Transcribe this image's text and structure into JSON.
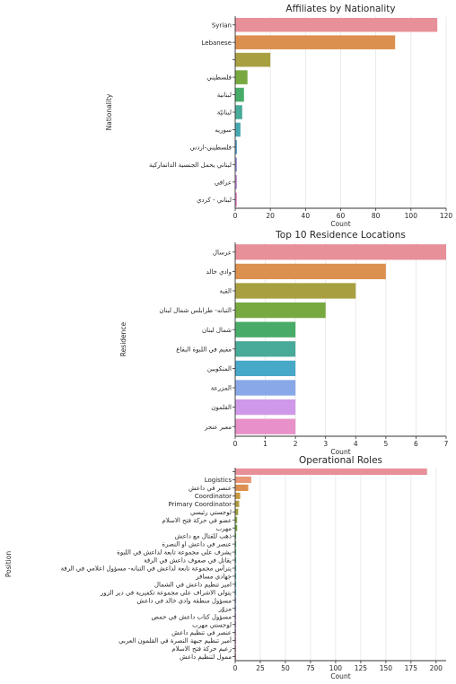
{
  "chart_data": [
    {
      "type": "bar",
      "orientation": "horizontal",
      "title": "Affiliates by Nationality",
      "xlabel": "Count",
      "ylabel": "Nationality",
      "xlim": [
        0,
        120
      ],
      "xticks": [
        0,
        20,
        40,
        60,
        80,
        100,
        120
      ],
      "grid": "vertical",
      "categories": [
        "Syrian",
        "Lebanese",
        "",
        "فلسطيني",
        "لبنانية",
        "لبنانيّة",
        "سوريه",
        "فلسطيني-اردني",
        "لبناني يحمل الجنسية الدانماركية",
        "عراقي",
        "لبناني - كردي"
      ],
      "values": [
        115,
        91,
        20,
        7,
        5,
        4,
        3,
        1,
        1,
        1,
        1
      ],
      "colors": [
        "#e8909a",
        "#dc9050",
        "#a8a040",
        "#78a840",
        "#48ac68",
        "#48aa98",
        "#48a8b0",
        "#58a0c8",
        "#a098dc",
        "#c890dc",
        "#e890c8"
      ]
    },
    {
      "type": "bar",
      "orientation": "horizontal",
      "title": "Top 10 Residence Locations",
      "xlabel": "Count",
      "ylabel": "Residence",
      "xlim": [
        0,
        7
      ],
      "xticks": [
        0,
        1,
        2,
        3,
        4,
        5,
        6,
        7
      ],
      "grid": "vertical",
      "categories": [
        "عرسال",
        "وادي خالد",
        "القبة",
        "التبانه- طرابلس شمال لبنان",
        "شمال لبنان",
        "مقيم في اللبوة البقاع",
        "المنكوبين",
        "المزرعة",
        "القلمون",
        "معبر عنجر"
      ],
      "values": [
        7,
        5,
        4,
        3,
        2,
        2,
        2,
        2,
        2,
        2
      ],
      "colors": [
        "#e8909a",
        "#dc9050",
        "#a8a040",
        "#78a840",
        "#48ac68",
        "#48aa98",
        "#48a8c8",
        "#88a8e8",
        "#d098e8",
        "#e890c8"
      ]
    },
    {
      "type": "bar",
      "orientation": "horizontal",
      "title": "Operational Roles",
      "xlabel": "Count",
      "ylabel": "Position",
      "xlim": [
        0,
        210
      ],
      "xticks": [
        0,
        25,
        50,
        75,
        100,
        125,
        150,
        175,
        200
      ],
      "grid": "vertical",
      "categories": [
        "",
        "Logistics",
        "عنصر في داعش",
        "Coordinator",
        "Primary Coordinator",
        "لوجستي رئيسي",
        "عضو في حركة فتح الاسلام",
        "مهرب",
        "ذهب للقتال مع داعش",
        "عنصر في داعش او النصرة",
        "يشرف على مجموعة تابعة لداعش في اللبوة",
        "يقاتل في صفوف داعش في الرقة",
        "يترأس مجموعة تابعة لداعش في التبانه- مسؤول اعلامي في الرقة",
        "جهادي مسافر",
        "امير تنظيم داعش في الشمال",
        "يتولى الاشراف على مجموعة تكفيرية في دير الزور",
        "مسؤول منطقة وادي خالد في داعش",
        "مزوّر",
        "مسؤول كتاب داعش في حمص",
        "لوجستي مهرب",
        "عنصر في تنظيم داعش",
        "أمير تنظيم جبهة النصرة في القلمون العربي",
        "زعيم حركة فتح الاسلام",
        "ممول لتنظيم داعش"
      ],
      "values": [
        191,
        16,
        13,
        5,
        4,
        3,
        2,
        2,
        1,
        1,
        1,
        1,
        1,
        1,
        1,
        1,
        1,
        1,
        1,
        1,
        1,
        1,
        1,
        1
      ],
      "colors": [
        "#e8909a",
        "#e89878",
        "#dc9050",
        "#c89a40",
        "#b09c40",
        "#a0a040",
        "#88a840",
        "#70a840",
        "#50ac50",
        "#48ac68",
        "#48ac80",
        "#48aa94",
        "#48a8a4",
        "#48a8b4",
        "#48a6c4",
        "#58a0d4",
        "#80a0e0",
        "#98a0e8",
        "#b098e8",
        "#c094e4",
        "#d090e0",
        "#e090d4",
        "#e890c4",
        "#e890b0"
      ]
    }
  ]
}
